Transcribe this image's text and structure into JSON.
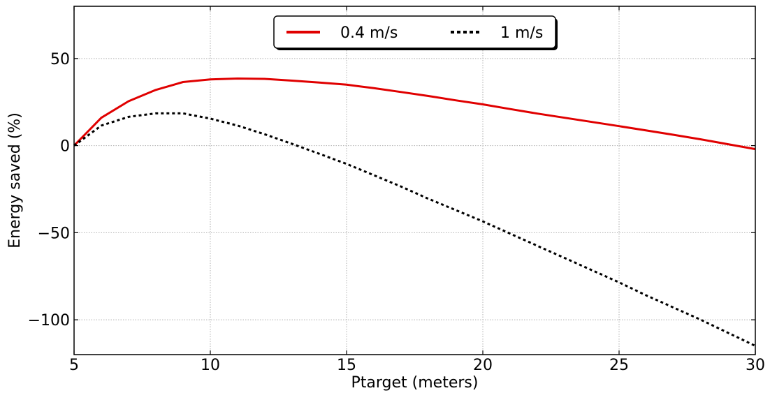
{
  "chart_data": {
    "type": "line",
    "title": "",
    "xlabel": "Ptarget (meters)",
    "ylabel": "Energy saved (%)",
    "xlim": [
      5,
      30
    ],
    "ylim": [
      -120,
      80
    ],
    "xticks": [
      5,
      10,
      15,
      20,
      25,
      30
    ],
    "xtick_labels": [
      "5",
      "10",
      "15",
      "20",
      "25",
      "30"
    ],
    "yticks": [
      50,
      0,
      -50,
      -100
    ],
    "ytick_labels": [
      "50",
      "0",
      "−50",
      "−100"
    ],
    "grid": true,
    "legend_position": "top-center",
    "series": [
      {
        "name": "0.4 m/s",
        "color": "#e00000",
        "style": "solid",
        "x": [
          5,
          6,
          7,
          8,
          9,
          10,
          11,
          12,
          13,
          14,
          15,
          16,
          17,
          18,
          19,
          20,
          21,
          22,
          23,
          24,
          25,
          26,
          27,
          28,
          29,
          30
        ],
        "y": [
          0,
          16,
          25.5,
          32,
          36.5,
          38,
          38.5,
          38.3,
          37.3,
          36.2,
          35,
          33,
          30.8,
          28.5,
          26,
          23.7,
          21,
          18.4,
          16,
          13.6,
          11.2,
          8.7,
          6.2,
          3.6,
          0.8,
          -2
        ]
      },
      {
        "name": "1 m/s",
        "color": "#000000",
        "style": "dotted",
        "x": [
          5,
          6,
          7,
          8,
          9,
          10,
          11,
          12,
          13,
          14,
          15,
          16,
          17,
          18,
          19,
          20,
          21,
          22,
          23,
          24,
          25,
          26,
          27,
          28,
          29,
          30
        ],
        "y": [
          0,
          11.5,
          16.5,
          18.5,
          18.5,
          15.5,
          11.5,
          6.5,
          1,
          -4.7,
          -10.5,
          -17,
          -23.5,
          -30.5,
          -37,
          -43.5,
          -50.5,
          -57.5,
          -64.5,
          -71.5,
          -78.5,
          -86,
          -93,
          -100,
          -107.5,
          -115
        ]
      }
    ]
  }
}
